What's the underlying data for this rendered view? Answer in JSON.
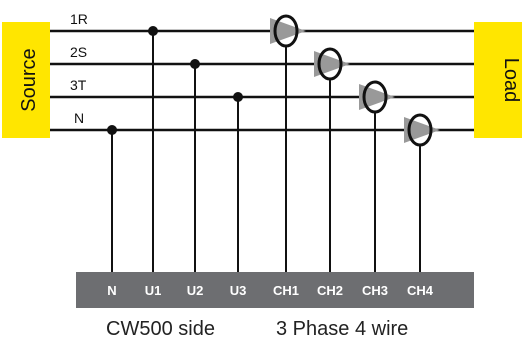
{
  "source_label": "Source",
  "load_label": "Load",
  "lines": [
    {
      "label": "1R"
    },
    {
      "label": "2S"
    },
    {
      "label": "3T"
    },
    {
      "label": "N"
    }
  ],
  "terminals": [
    {
      "label": "N"
    },
    {
      "label": "U1"
    },
    {
      "label": "U2"
    },
    {
      "label": "U3"
    },
    {
      "label": "CH1"
    },
    {
      "label": "CH2"
    },
    {
      "label": "CH3"
    },
    {
      "label": "CH4"
    }
  ],
  "caption_left": "CW500 side",
  "caption_right": "3 Phase 4 wire",
  "colors": {
    "box": "#FFE600",
    "wire": "#111111",
    "terminal_bar": "#6D6E71",
    "clamp_arrow": "#999999"
  }
}
